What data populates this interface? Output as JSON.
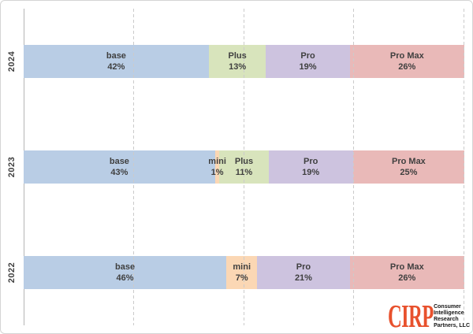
{
  "chart_data": {
    "type": "bar",
    "orientation": "horizontal",
    "stacked": "100-percent",
    "title": "",
    "xlabel": "",
    "ylabel": "",
    "categories": [
      "2024",
      "2023",
      "2022"
    ],
    "gridlines_pct": [
      25,
      50,
      75,
      100
    ],
    "grid": "vertical-dashed",
    "legend": "none",
    "segment_colors": {
      "base": "#b9cde5",
      "mini": "#fbd7b4",
      "Plus": "#d8e4bc",
      "Pro": "#cdc3df",
      "Pro Max": "#e9b9b8"
    },
    "rows": [
      {
        "year": "2024",
        "segments": [
          {
            "label": "base",
            "pct": 42
          },
          {
            "label": "Plus",
            "pct": 13
          },
          {
            "label": "Pro",
            "pct": 19
          },
          {
            "label": "Pro Max",
            "pct": 26
          }
        ]
      },
      {
        "year": "2023",
        "segments": [
          {
            "label": "base",
            "pct": 43
          },
          {
            "label": "mini",
            "pct": 1
          },
          {
            "label": "Plus",
            "pct": 11
          },
          {
            "label": "Pro",
            "pct": 19
          },
          {
            "label": "Pro Max",
            "pct": 25
          }
        ]
      },
      {
        "year": "2022",
        "segments": [
          {
            "label": "base",
            "pct": 46
          },
          {
            "label": "mini",
            "pct": 7
          },
          {
            "label": "Pro",
            "pct": 21
          },
          {
            "label": "Pro Max",
            "pct": 26
          }
        ]
      }
    ],
    "colors_misc": {
      "label_text": "#3f3f3f",
      "gridline": "#cbcbcb",
      "axis_line": "#b5b5b5",
      "frame_border": "#d4d4d4"
    }
  },
  "logo": {
    "brand": "CIRP",
    "brand_color": "#e8512d",
    "lines": [
      "Consumer",
      "Intelligence",
      "Research",
      "Partners, LLC"
    ],
    "text_color": "#151515"
  }
}
